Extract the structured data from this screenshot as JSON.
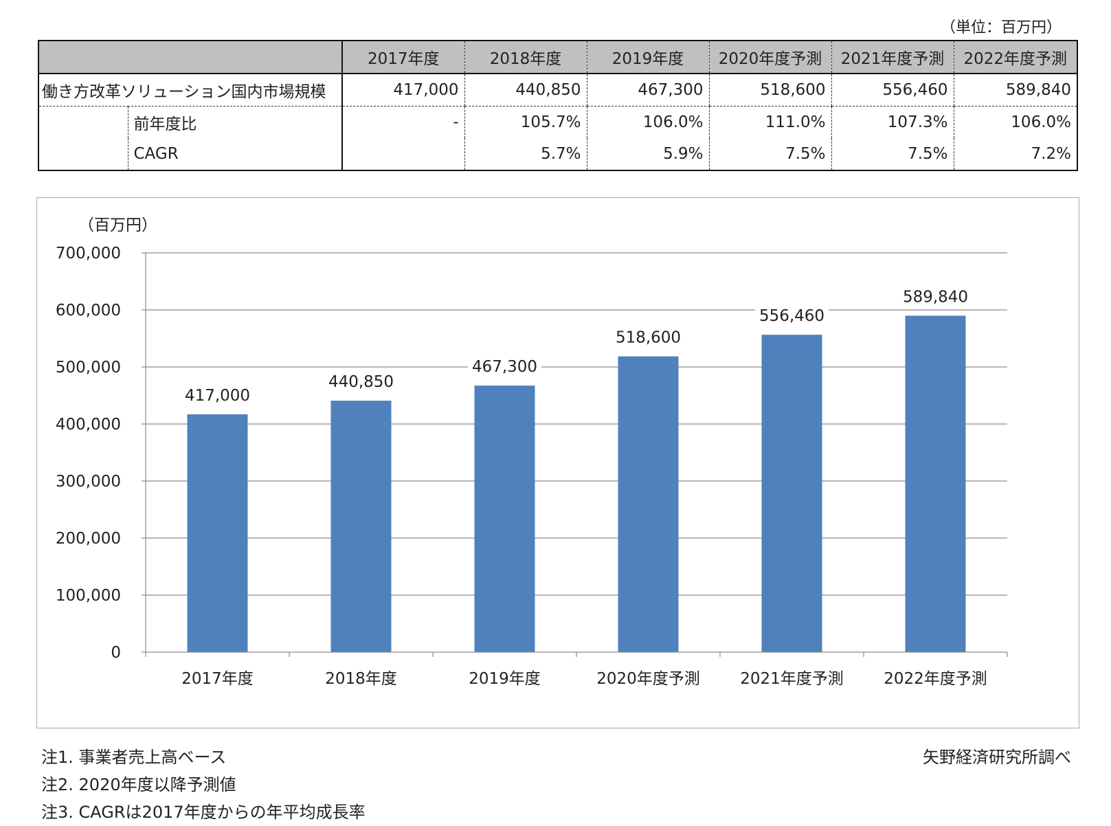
{
  "table": {
    "unit_note": "（単位：百万円）",
    "years": [
      "2017年度",
      "2018年度",
      "2019年度",
      "2020年度予測",
      "2021年度予測",
      "2022年度予測"
    ],
    "market_label": "働き方改革ソリューション国内市場規模",
    "market_values": [
      "417,000",
      "440,850",
      "467,300",
      "518,600",
      "556,460",
      "589,840"
    ],
    "yoy_label": "前年度比",
    "yoy_values": [
      "-",
      "105.7%",
      "106.0%",
      "111.0%",
      "107.3%",
      "106.0%"
    ],
    "cagr_label": "CAGR",
    "cagr_values": [
      "",
      "5.7%",
      "5.9%",
      "7.5%",
      "7.5%",
      "7.2%"
    ]
  },
  "chart_data": {
    "type": "bar",
    "title": "",
    "ylabel": "（百万円）",
    "xlabel": "",
    "categories": [
      "2017年度",
      "2018年度",
      "2019年度",
      "2020年度予測",
      "2021年度予測",
      "2022年度予測"
    ],
    "values": [
      417000,
      440850,
      467300,
      518600,
      556460,
      589840
    ],
    "data_labels": [
      "417,000",
      "440,850",
      "467,300",
      "518,600",
      "556,460",
      "589,840"
    ],
    "ylim": [
      0,
      700000
    ],
    "yticks": [
      0,
      100000,
      200000,
      300000,
      400000,
      500000,
      600000,
      700000
    ],
    "ytick_labels": [
      "0",
      "100,000",
      "200,000",
      "300,000",
      "400,000",
      "500,000",
      "600,000",
      "700,000"
    ],
    "grid": true,
    "bar_color": "#4f81bd"
  },
  "notes": [
    "注1. 事業者売上高ベース",
    "注2. 2020年度以降予測値",
    "注3. CAGRは2017年度からの年平均成長率"
  ],
  "source": "矢野経済研究所調べ"
}
